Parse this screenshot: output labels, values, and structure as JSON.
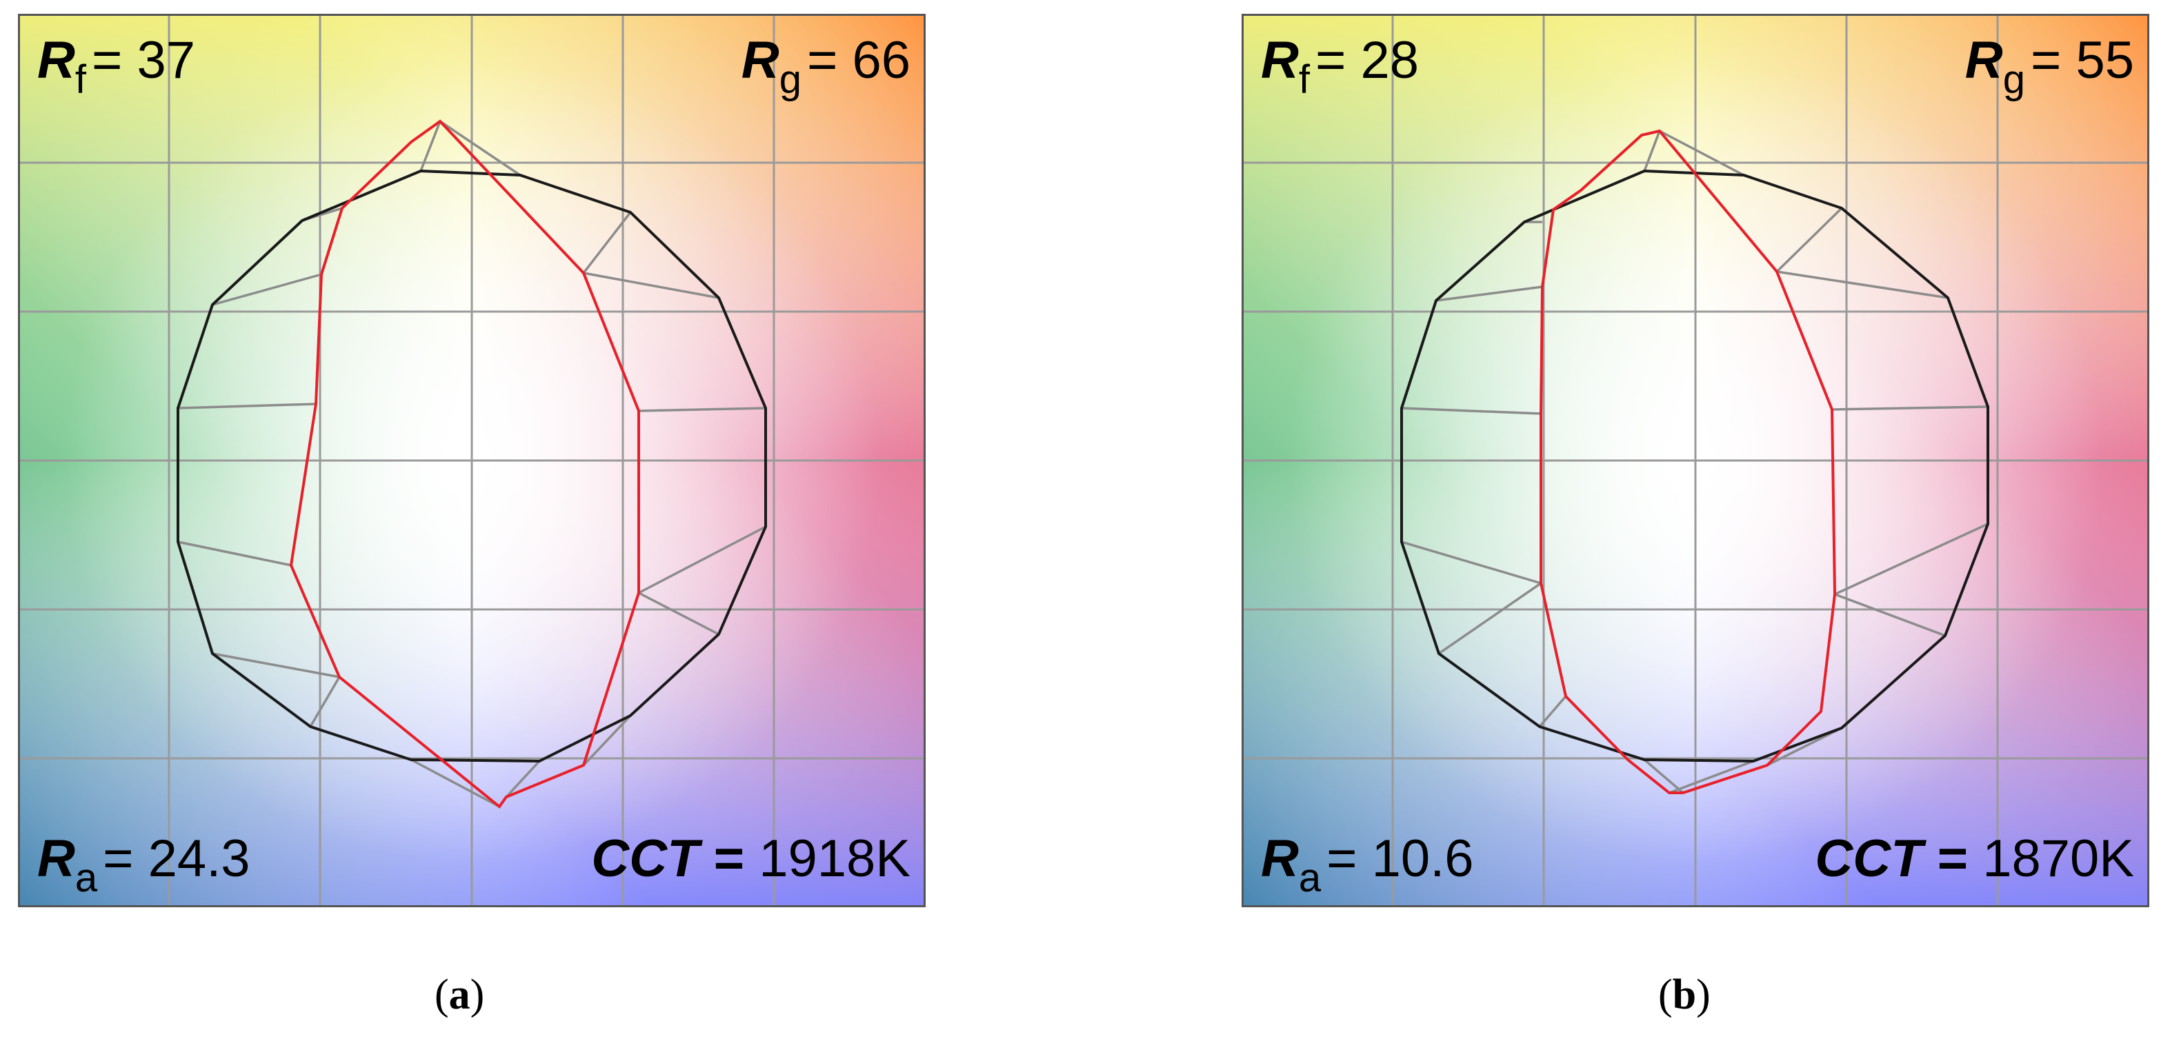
{
  "panels": [
    {
      "id": "a",
      "caption": "a",
      "rf_symbol": "R",
      "rf_sub": "f",
      "rf_value": "37",
      "rg_symbol": "R",
      "rg_sub": "g",
      "rg_value": "66",
      "ra_symbol": "R",
      "ra_sub": "a",
      "ra_value": "24.3",
      "cct_label": "CCT",
      "cct_eq": "=",
      "cct_value": "1918K"
    },
    {
      "id": "b",
      "caption": "b",
      "rf_symbol": "R",
      "rf_sub": "f",
      "rf_value": "28",
      "rg_symbol": "R",
      "rg_sub": "g",
      "rg_value": "55",
      "ra_symbol": "R",
      "ra_sub": "a",
      "ra_value": "10.6",
      "cct_label": "CCT",
      "cct_eq": "=",
      "cct_value": "1870K"
    }
  ],
  "colors": {
    "reference_polygon": "#1a1a1a",
    "test_polygon": "#e8202a",
    "shift_lines": "#8c8c8c",
    "grid": "#9a9a9a"
  }
}
